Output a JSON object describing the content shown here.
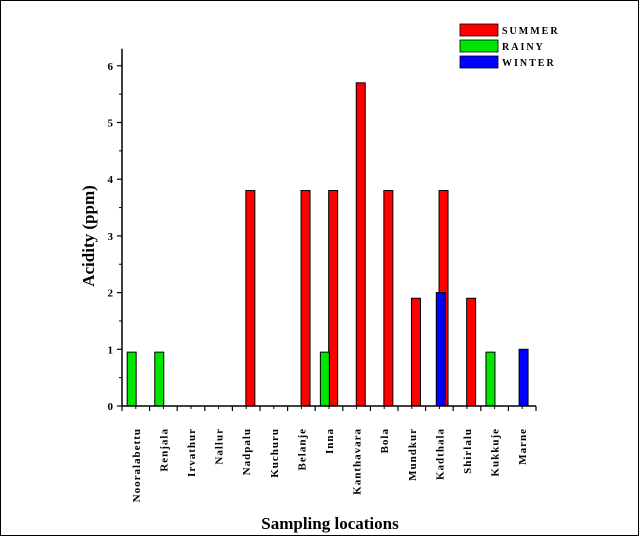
{
  "chart_data": {
    "type": "bar",
    "xlabel": "Sampling locations",
    "ylabel": "Acidity (ppm)",
    "ylim": [
      0,
      6.3
    ],
    "yticks": [
      0,
      1,
      2,
      3,
      4,
      5,
      6
    ],
    "grid": false,
    "legend_position": "top-right",
    "categories": [
      "Nooralabettu",
      "Renjala",
      "Irvathur",
      "Nallur",
      "Nadpalu",
      "Kuchuru",
      "Belanje",
      "Inna",
      "Kanthavara",
      "Bola",
      "Mundkur",
      "Kadthala",
      "Shirlalu",
      "Kukkuje",
      "Marne"
    ],
    "series": [
      {
        "name": "SUMMER",
        "color": "#ff0000",
        "values": [
          0,
          0,
          0,
          0,
          3.8,
          0,
          3.8,
          3.8,
          5.7,
          3.8,
          1.9,
          3.8,
          1.9,
          0,
          0
        ]
      },
      {
        "name": "RAINY",
        "color": "#00e600",
        "values": [
          0.95,
          0.95,
          0,
          0,
          0,
          0,
          0,
          0.95,
          0,
          0,
          0,
          0,
          0,
          0.95,
          0
        ]
      },
      {
        "name": "WINTER",
        "color": "#0000ff",
        "values": [
          0,
          0,
          0,
          0,
          0,
          0,
          0,
          0,
          0,
          0,
          0,
          2.0,
          0,
          0,
          1.0
        ]
      }
    ]
  }
}
